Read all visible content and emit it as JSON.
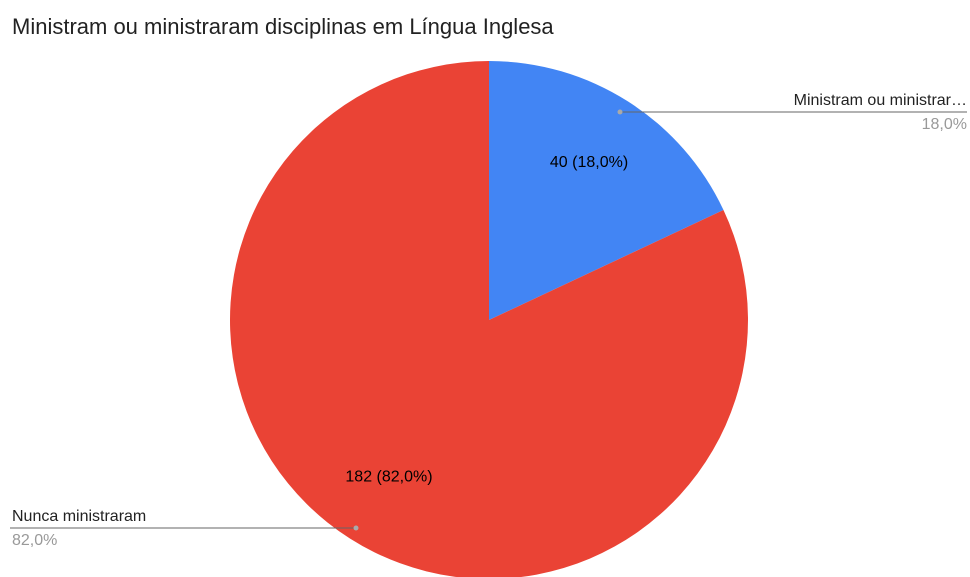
{
  "chart_data": {
    "type": "pie",
    "title": "Ministram ou ministraram disciplinas em Língua Inglesa",
    "categories": [
      "Ministram ou ministrar…",
      "Nunca ministraram"
    ],
    "values": [
      40,
      182
    ],
    "value_labels": [
      "40 (18,0%)",
      "182 (82,0%)"
    ],
    "percentages": [
      18.0,
      82.0
    ],
    "percentage_labels": [
      "18,0%",
      "82,0%"
    ],
    "colors": [
      "#4285f4",
      "#ea4335"
    ]
  }
}
